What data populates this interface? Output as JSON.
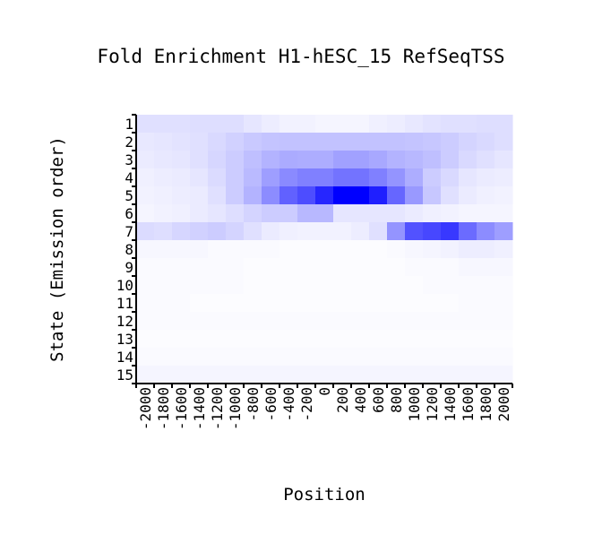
{
  "chart_data": {
    "type": "heatmap",
    "title": "Fold Enrichment H1-hESC_15 RefSeqTSS",
    "xlabel": "Position",
    "ylabel": "State (Emission order)",
    "x_categories": [
      "-2000",
      "-1800",
      "-1600",
      "-1400",
      "-1200",
      "-1000",
      "-800",
      "-600",
      "-400",
      "-200",
      "0",
      "200",
      "400",
      "600",
      "800",
      "1000",
      "1200",
      "1400",
      "1600",
      "1800",
      "2000"
    ],
    "y_categories": [
      "1",
      "2",
      "3",
      "4",
      "5",
      "6",
      "7",
      "8",
      "9",
      "10",
      "11",
      "12",
      "13",
      "14",
      "15"
    ],
    "color_low": "#ffffff",
    "color_high": "#0000ff",
    "values": [
      [
        0.12,
        0.12,
        0.12,
        0.13,
        0.13,
        0.13,
        0.1,
        0.07,
        0.05,
        0.05,
        0.04,
        0.04,
        0.04,
        0.06,
        0.07,
        0.09,
        0.11,
        0.12,
        0.12,
        0.13,
        0.13
      ],
      [
        0.09,
        0.1,
        0.11,
        0.12,
        0.15,
        0.18,
        0.21,
        0.23,
        0.24,
        0.24,
        0.24,
        0.24,
        0.24,
        0.24,
        0.24,
        0.23,
        0.22,
        0.2,
        0.17,
        0.15,
        0.13
      ],
      [
        0.08,
        0.09,
        0.1,
        0.12,
        0.16,
        0.2,
        0.25,
        0.3,
        0.33,
        0.32,
        0.32,
        0.37,
        0.37,
        0.34,
        0.3,
        0.28,
        0.25,
        0.2,
        0.15,
        0.12,
        0.1
      ],
      [
        0.06,
        0.07,
        0.08,
        0.1,
        0.14,
        0.2,
        0.27,
        0.38,
        0.46,
        0.5,
        0.5,
        0.55,
        0.55,
        0.5,
        0.42,
        0.32,
        0.2,
        0.15,
        0.1,
        0.08,
        0.07
      ],
      [
        0.05,
        0.06,
        0.07,
        0.08,
        0.12,
        0.2,
        0.3,
        0.45,
        0.62,
        0.7,
        0.85,
        1.0,
        1.0,
        0.88,
        0.6,
        0.4,
        0.22,
        0.12,
        0.08,
        0.06,
        0.05
      ],
      [
        0.04,
        0.05,
        0.06,
        0.08,
        0.1,
        0.13,
        0.17,
        0.2,
        0.2,
        0.28,
        0.28,
        0.1,
        0.1,
        0.1,
        0.1,
        0.08,
        0.06,
        0.05,
        0.04,
        0.04,
        0.04
      ],
      [
        0.14,
        0.13,
        0.16,
        0.18,
        0.2,
        0.17,
        0.12,
        0.08,
        0.06,
        0.05,
        0.05,
        0.05,
        0.07,
        0.12,
        0.42,
        0.68,
        0.72,
        0.78,
        0.58,
        0.45,
        0.38
      ],
      [
        0.03,
        0.03,
        0.03,
        0.03,
        0.02,
        0.02,
        0.02,
        0.02,
        0.01,
        0.01,
        0.01,
        0.01,
        0.01,
        0.01,
        0.02,
        0.03,
        0.04,
        0.05,
        0.07,
        0.07,
        0.06
      ],
      [
        0.02,
        0.02,
        0.02,
        0.02,
        0.02,
        0.02,
        0.01,
        0.01,
        0.01,
        0.01,
        0.01,
        0.01,
        0.01,
        0.01,
        0.01,
        0.02,
        0.02,
        0.02,
        0.03,
        0.03,
        0.03
      ],
      [
        0.02,
        0.02,
        0.02,
        0.02,
        0.02,
        0.02,
        0.01,
        0.01,
        0.01,
        0.01,
        0.01,
        0.01,
        0.01,
        0.01,
        0.01,
        0.01,
        0.02,
        0.02,
        0.02,
        0.02,
        0.02
      ],
      [
        0.02,
        0.02,
        0.02,
        0.01,
        0.01,
        0.01,
        0.01,
        0.01,
        0.01,
        0.01,
        0.01,
        0.01,
        0.01,
        0.01,
        0.01,
        0.01,
        0.01,
        0.01,
        0.02,
        0.02,
        0.02
      ],
      [
        0.02,
        0.02,
        0.02,
        0.02,
        0.02,
        0.02,
        0.02,
        0.02,
        0.02,
        0.02,
        0.02,
        0.02,
        0.02,
        0.02,
        0.02,
        0.02,
        0.02,
        0.02,
        0.02,
        0.02,
        0.02
      ],
      [
        0.01,
        0.01,
        0.01,
        0.01,
        0.01,
        0.01,
        0.01,
        0.01,
        0.01,
        0.01,
        0.01,
        0.01,
        0.01,
        0.01,
        0.01,
        0.01,
        0.01,
        0.01,
        0.01,
        0.01,
        0.01
      ],
      [
        0.02,
        0.02,
        0.02,
        0.02,
        0.02,
        0.02,
        0.02,
        0.02,
        0.02,
        0.02,
        0.02,
        0.02,
        0.02,
        0.02,
        0.02,
        0.02,
        0.02,
        0.02,
        0.02,
        0.02,
        0.02
      ],
      [
        0.04,
        0.04,
        0.04,
        0.04,
        0.04,
        0.04,
        0.04,
        0.04,
        0.04,
        0.04,
        0.04,
        0.04,
        0.04,
        0.04,
        0.04,
        0.04,
        0.04,
        0.04,
        0.04,
        0.04,
        0.04
      ]
    ]
  }
}
